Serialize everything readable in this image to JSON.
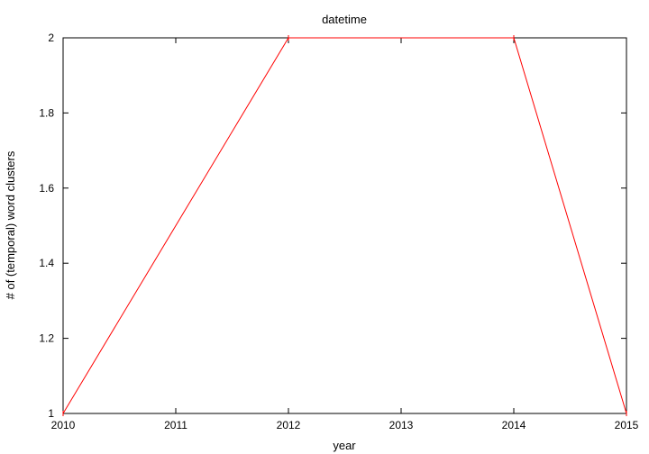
{
  "chart_data": {
    "type": "line",
    "title": "datetime",
    "xlabel": "year",
    "ylabel": "# of (temporal) word clusters",
    "xlim": [
      2010,
      2015
    ],
    "ylim": [
      1,
      2
    ],
    "x_ticks": [
      2010,
      2011,
      2012,
      2013,
      2014,
      2015
    ],
    "y_ticks": [
      1,
      1.2,
      1.4,
      1.6,
      1.8,
      2
    ],
    "y_tick_labels": [
      "1",
      "1.2",
      "1.4",
      "1.6",
      "1.8",
      "2"
    ],
    "grid": false,
    "series": [
      {
        "color": "#ff0000",
        "x": [
          2010,
          2012,
          2014,
          2015
        ],
        "y": [
          1,
          2,
          2,
          1
        ]
      }
    ]
  }
}
